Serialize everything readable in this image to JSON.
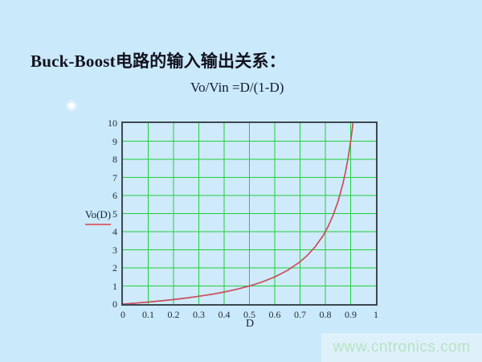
{
  "page": {
    "background": "#cae9fa"
  },
  "title": "Buck-Boost电路的输入输出关系：",
  "formula": "Vo/Vin =D/(1-D)",
  "legend": {
    "label": "Vo(D)"
  },
  "watermark": {
    "text": "www.cntronics.com",
    "text_color": "#b7e2c3",
    "box_background": "#def1fa"
  },
  "chart_data": {
    "type": "line",
    "title": "",
    "xlabel": "D",
    "ylabel": "Vo(D)",
    "xlim": [
      0,
      1
    ],
    "ylim": [
      0,
      10
    ],
    "grid": true,
    "legend_position": "left",
    "x_tick_labels": [
      "0",
      "0.1",
      "0.2",
      "0.3",
      "0.4",
      "0.5",
      "0.6",
      "0.7",
      "0.8",
      "0.9",
      "1"
    ],
    "y_tick_labels": [
      "0",
      "1",
      "2",
      "3",
      "4",
      "5",
      "6",
      "7",
      "8",
      "9",
      "10"
    ],
    "colors": {
      "grid": "#1fd03a",
      "frame": "#3d4753",
      "curve": "#c84f5a",
      "legend_swatch": "#d96a74",
      "plot_background": "#cfeafb"
    },
    "series": [
      {
        "name": "Vo(D)",
        "function": "Vo(D) = D/(1-D)",
        "x": [
          0,
          0.05,
          0.1,
          0.15,
          0.2,
          0.25,
          0.3,
          0.35,
          0.4,
          0.45,
          0.5,
          0.55,
          0.6,
          0.65,
          0.7,
          0.73,
          0.76,
          0.79,
          0.81,
          0.83,
          0.85,
          0.87,
          0.88,
          0.89,
          0.9,
          0.905,
          0.909
        ],
        "y": [
          0,
          0.053,
          0.111,
          0.176,
          0.25,
          0.333,
          0.429,
          0.538,
          0.667,
          0.818,
          1,
          1.222,
          1.5,
          1.857,
          2.333,
          2.704,
          3.167,
          3.762,
          4.263,
          4.882,
          5.667,
          6.692,
          7.333,
          8.091,
          9,
          9.526,
          9.989
        ]
      }
    ]
  }
}
